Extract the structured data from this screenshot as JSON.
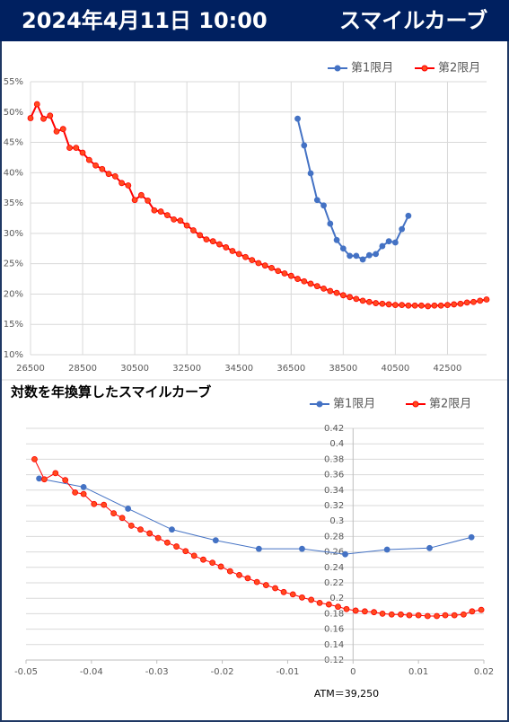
{
  "header": {
    "date": "2024年4月11日 10:00",
    "title": "スマイルカーブ"
  },
  "chart_data": [
    {
      "type": "line",
      "series": [
        {
          "name": "第1限月",
          "color": "#4472c4",
          "marker_color": "#4472c4",
          "x": [
            36750,
            37000,
            37250,
            37500,
            37750,
            38000,
            38250,
            38500,
            38750,
            39000,
            39250,
            39500,
            39750,
            40000,
            40250,
            40500,
            40750,
            41000
          ],
          "values": [
            48.9,
            44.5,
            39.9,
            35.5,
            34.6,
            31.6,
            28.9,
            27.5,
            26.3,
            26.3,
            25.7,
            26.4,
            26.6,
            27.9,
            28.7,
            28.5,
            30.7,
            32.9
          ]
        },
        {
          "name": "第2限月",
          "color": "#ff0000",
          "marker_color": "#ff4b1f",
          "x": [
            26500,
            26750,
            27000,
            27250,
            27500,
            27750,
            28000,
            28250,
            28500,
            28750,
            29000,
            29250,
            29500,
            29750,
            30000,
            30250,
            30500,
            30750,
            31000,
            31250,
            31500,
            31750,
            32000,
            32250,
            32500,
            32750,
            33000,
            33250,
            33500,
            33750,
            34000,
            34250,
            34500,
            34750,
            35000,
            35250,
            35500,
            35750,
            36000,
            36250,
            36500,
            36750,
            37000,
            37250,
            37500,
            37750,
            38000,
            38250,
            38500,
            38750,
            39000,
            39250,
            39500,
            39750,
            40000,
            40250,
            40500,
            40750,
            41000,
            41250,
            41500,
            41750,
            42000,
            42250,
            42500,
            42750,
            43000,
            43250,
            43500,
            43750,
            44000
          ],
          "values": [
            49,
            51.3,
            48.9,
            49.4,
            46.8,
            47.2,
            44.1,
            44.1,
            43.3,
            42.1,
            41.2,
            40.6,
            39.8,
            39.4,
            38.3,
            37.9,
            35.5,
            36.3,
            35.4,
            33.8,
            33.6,
            33.0,
            32.3,
            32.1,
            31.3,
            30.5,
            29.7,
            29.0,
            28.7,
            28.2,
            27.7,
            27.1,
            26.6,
            26.1,
            25.6,
            25.1,
            24.7,
            24.3,
            23.8,
            23.4,
            23.0,
            22.5,
            22.1,
            21.7,
            21.3,
            20.9,
            20.5,
            20.2,
            19.8,
            19.5,
            19.2,
            18.9,
            18.7,
            18.5,
            18.4,
            18.3,
            18.2,
            18.2,
            18.1,
            18.1,
            18.1,
            18.0,
            18.1,
            18.1,
            18.2,
            18.3,
            18.4,
            18.6,
            18.7,
            18.9,
            19.1
          ]
        }
      ],
      "xlim": [
        26500,
        44000
      ],
      "xticks": [
        26500,
        28500,
        30500,
        32500,
        34500,
        36500,
        38500,
        40500,
        42500
      ],
      "ylim": [
        10,
        55
      ],
      "yticks": [
        {
          "value": 10,
          "label": "10%"
        },
        {
          "value": 15,
          "label": "15%"
        },
        {
          "value": 20,
          "label": "20%"
        },
        {
          "value": 25,
          "label": "25%"
        },
        {
          "value": 30,
          "label": "30%"
        },
        {
          "value": 35,
          "label": "35%"
        },
        {
          "value": 40,
          "label": "40%"
        },
        {
          "value": 45,
          "label": "45%"
        },
        {
          "value": 50,
          "label": "50%"
        },
        {
          "value": 55,
          "label": "55%"
        }
      ],
      "grid": "both",
      "legend": "top-right"
    },
    {
      "type": "line",
      "title": "対数を年換算したスマイルカーブ",
      "series": [
        {
          "name": "第1限月",
          "color": "#4472c4",
          "marker_color": "#4472c4",
          "x": [
            -0.048,
            -0.0412,
            -0.0344,
            -0.0277,
            -0.021,
            -0.0144,
            -0.0078,
            -0.0012,
            0.0052,
            0.0117,
            0.0181
          ],
          "values": [
            0.355,
            0.344,
            0.316,
            0.289,
            0.275,
            0.264,
            0.264,
            0.257,
            0.263,
            0.265,
            0.279
          ]
        },
        {
          "name": "第2限月",
          "color": "#ff0000",
          "marker_color": "#ff4b1f",
          "x": [
            -0.0487,
            -0.0472,
            -0.0455,
            -0.044,
            -0.0425,
            -0.0412,
            -0.0396,
            -0.0381,
            -0.0366,
            -0.0353,
            -0.0339,
            -0.0325,
            -0.0311,
            -0.0298,
            -0.0284,
            -0.027,
            -0.0256,
            -0.0243,
            -0.0229,
            -0.0215,
            -0.0202,
            -0.0188,
            -0.0174,
            -0.0161,
            -0.0147,
            -0.0133,
            -0.0119,
            -0.0106,
            -0.0092,
            -0.0078,
            -0.0064,
            -0.0051,
            -0.0037,
            -0.0023,
            -0.001,
            0.0004,
            0.0018,
            0.0032,
            0.0045,
            0.0059,
            0.0073,
            0.0086,
            0.01,
            0.0114,
            0.0128,
            0.0141,
            0.0155,
            0.0169,
            0.0182,
            0.0196
          ],
          "values": [
            0.38,
            0.354,
            0.362,
            0.353,
            0.337,
            0.335,
            0.322,
            0.321,
            0.31,
            0.304,
            0.294,
            0.289,
            0.284,
            0.278,
            0.272,
            0.267,
            0.261,
            0.255,
            0.25,
            0.246,
            0.241,
            0.235,
            0.23,
            0.226,
            0.221,
            0.217,
            0.213,
            0.208,
            0.205,
            0.201,
            0.198,
            0.194,
            0.192,
            0.189,
            0.186,
            0.184,
            0.183,
            0.182,
            0.18,
            0.179,
            0.179,
            0.178,
            0.178,
            0.177,
            0.177,
            0.178,
            0.178,
            0.179,
            0.183,
            0.185
          ]
        }
      ],
      "xlim": [
        -0.05,
        0.02
      ],
      "xticks": [
        -0.05,
        -0.04,
        -0.03,
        -0.02,
        -0.01,
        0,
        0.01,
        0.02
      ],
      "ylim": [
        0.12,
        0.42
      ],
      "yticks": [
        0.12,
        0.14,
        0.16,
        0.18,
        0.2,
        0.22,
        0.24,
        0.26,
        0.28,
        0.3,
        0.32,
        0.34,
        0.36,
        0.38,
        0.4,
        0.42
      ],
      "grid": "y",
      "y_axis_cross": 0,
      "legend": "top-right",
      "annotation": "ATM＝39,250"
    }
  ]
}
